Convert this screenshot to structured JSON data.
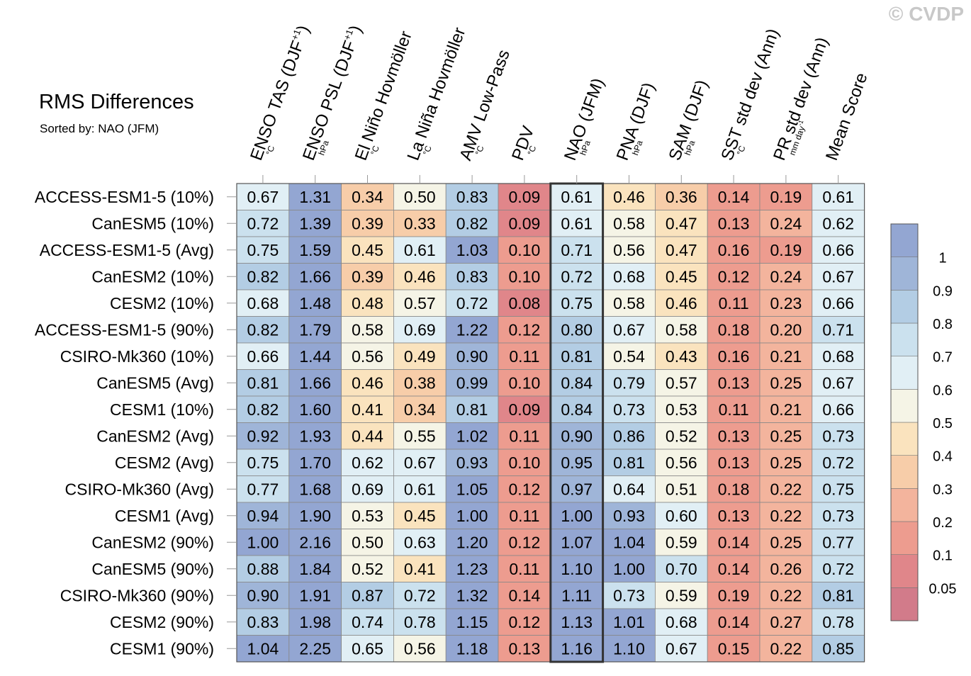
{
  "watermark": "© CVDP",
  "chart_data": {
    "type": "heatmap",
    "title": "RMS Differences",
    "subtitle": "Sorted by: NAO (JFM)",
    "highlighted_column": "NAO (JFM)",
    "columns": [
      {
        "label": "ENSO TAS (DJF",
        "sup": "+1",
        "label_end": ")",
        "unit": "°C"
      },
      {
        "label": "ENSO PSL (DJF",
        "sup": "+1",
        "label_end": ")",
        "unit": "hPa"
      },
      {
        "label": "El Niño Hovmöller",
        "unit": "°C"
      },
      {
        "label": "La Niña Hovmöller",
        "unit": "°C"
      },
      {
        "label": "AMV Low-Pass",
        "unit": "°C"
      },
      {
        "label": "PDV",
        "unit": "°C"
      },
      {
        "label": "NAO (JFM)",
        "unit": "hPa"
      },
      {
        "label": "PNA (DJF)",
        "unit": "hPa"
      },
      {
        "label": "SAM (DJF)",
        "unit": "hPa"
      },
      {
        "label": "SST std dev (Ann)",
        "unit": "°C"
      },
      {
        "label": "PR std dev (Ann)",
        "unit": "mm day",
        "unit_sup": "-1"
      },
      {
        "label": "Mean Score",
        "unit": ""
      }
    ],
    "rows": [
      {
        "name": "ACCESS-ESM1-5 (10%)",
        "values": [
          "0.67",
          "1.31",
          "0.34",
          "0.50",
          "0.83",
          "0.09",
          "0.61",
          "0.46",
          "0.36",
          "0.14",
          "0.19",
          "0.61"
        ]
      },
      {
        "name": "CanESM5 (10%)",
        "values": [
          "0.72",
          "1.39",
          "0.39",
          "0.33",
          "0.82",
          "0.09",
          "0.61",
          "0.58",
          "0.47",
          "0.13",
          "0.24",
          "0.62"
        ]
      },
      {
        "name": "ACCESS-ESM1-5 (Avg)",
        "values": [
          "0.75",
          "1.59",
          "0.45",
          "0.61",
          "1.03",
          "0.10",
          "0.71",
          "0.56",
          "0.47",
          "0.16",
          "0.19",
          "0.66"
        ]
      },
      {
        "name": "CanESM2 (10%)",
        "values": [
          "0.82",
          "1.66",
          "0.39",
          "0.46",
          "0.83",
          "0.10",
          "0.72",
          "0.68",
          "0.45",
          "0.12",
          "0.24",
          "0.67"
        ]
      },
      {
        "name": "CESM2 (10%)",
        "values": [
          "0.68",
          "1.48",
          "0.48",
          "0.57",
          "0.72",
          "0.08",
          "0.75",
          "0.58",
          "0.46",
          "0.11",
          "0.23",
          "0.66"
        ]
      },
      {
        "name": "ACCESS-ESM1-5 (90%)",
        "values": [
          "0.82",
          "1.79",
          "0.58",
          "0.69",
          "1.22",
          "0.12",
          "0.80",
          "0.67",
          "0.58",
          "0.18",
          "0.20",
          "0.71"
        ]
      },
      {
        "name": "CSIRO-Mk360 (10%)",
        "values": [
          "0.66",
          "1.44",
          "0.56",
          "0.49",
          "0.90",
          "0.11",
          "0.81",
          "0.54",
          "0.43",
          "0.16",
          "0.21",
          "0.68"
        ]
      },
      {
        "name": "CanESM5 (Avg)",
        "values": [
          "0.81",
          "1.66",
          "0.46",
          "0.38",
          "0.99",
          "0.10",
          "0.84",
          "0.79",
          "0.57",
          "0.13",
          "0.25",
          "0.67"
        ]
      },
      {
        "name": "CESM1 (10%)",
        "values": [
          "0.82",
          "1.60",
          "0.41",
          "0.34",
          "0.81",
          "0.09",
          "0.84",
          "0.73",
          "0.53",
          "0.11",
          "0.21",
          "0.66"
        ]
      },
      {
        "name": "CanESM2 (Avg)",
        "values": [
          "0.92",
          "1.93",
          "0.44",
          "0.55",
          "1.02",
          "0.11",
          "0.90",
          "0.86",
          "0.52",
          "0.13",
          "0.25",
          "0.73"
        ]
      },
      {
        "name": "CESM2 (Avg)",
        "values": [
          "0.75",
          "1.70",
          "0.62",
          "0.67",
          "0.93",
          "0.10",
          "0.95",
          "0.81",
          "0.56",
          "0.13",
          "0.25",
          "0.72"
        ]
      },
      {
        "name": "CSIRO-Mk360 (Avg)",
        "values": [
          "0.77",
          "1.68",
          "0.69",
          "0.61",
          "1.05",
          "0.12",
          "0.97",
          "0.64",
          "0.51",
          "0.18",
          "0.22",
          "0.75"
        ]
      },
      {
        "name": "CESM1 (Avg)",
        "values": [
          "0.94",
          "1.90",
          "0.53",
          "0.45",
          "1.00",
          "0.11",
          "1.00",
          "0.93",
          "0.60",
          "0.13",
          "0.22",
          "0.73"
        ]
      },
      {
        "name": "CanESM2 (90%)",
        "values": [
          "1.00",
          "2.16",
          "0.50",
          "0.63",
          "1.20",
          "0.12",
          "1.07",
          "1.04",
          "0.59",
          "0.14",
          "0.25",
          "0.77"
        ]
      },
      {
        "name": "CanESM5 (90%)",
        "values": [
          "0.88",
          "1.84",
          "0.52",
          "0.41",
          "1.23",
          "0.11",
          "1.10",
          "1.00",
          "0.70",
          "0.14",
          "0.26",
          "0.72"
        ]
      },
      {
        "name": "CSIRO-Mk360 (90%)",
        "values": [
          "0.90",
          "1.91",
          "0.87",
          "0.72",
          "1.32",
          "0.14",
          "1.11",
          "0.73",
          "0.59",
          "0.19",
          "0.22",
          "0.81"
        ]
      },
      {
        "name": "CESM2 (90%)",
        "values": [
          "0.83",
          "1.98",
          "0.74",
          "0.78",
          "1.15",
          "0.12",
          "1.13",
          "1.01",
          "0.68",
          "0.14",
          "0.27",
          "0.78"
        ]
      },
      {
        "name": "CESM1 (90%)",
        "values": [
          "1.04",
          "2.25",
          "0.65",
          "0.56",
          "1.18",
          "0.13",
          "1.16",
          "1.10",
          "0.67",
          "0.15",
          "0.22",
          "0.85"
        ]
      }
    ],
    "colorbar": {
      "levels": [
        0.05,
        0.1,
        0.2,
        0.3,
        0.4,
        0.5,
        0.6,
        0.7,
        0.8,
        0.9,
        1
      ],
      "level_labels": [
        "0.05",
        "0.1",
        "0.2",
        "0.3",
        "0.4",
        "0.5",
        "0.6",
        "0.7",
        "0.8",
        "0.9",
        "1"
      ],
      "colors": [
        "#d27b8a",
        "#e0868a",
        "#ed9c8f",
        "#f3b49d",
        "#f7cda9",
        "#fae3be",
        "#f5f4e6",
        "#e1eff5",
        "#cbe1ee",
        "#b3cde4",
        "#9fb5d8",
        "#93a6d2"
      ]
    },
    "grid_line_color": "#888888",
    "highlight_color": "#333333"
  }
}
